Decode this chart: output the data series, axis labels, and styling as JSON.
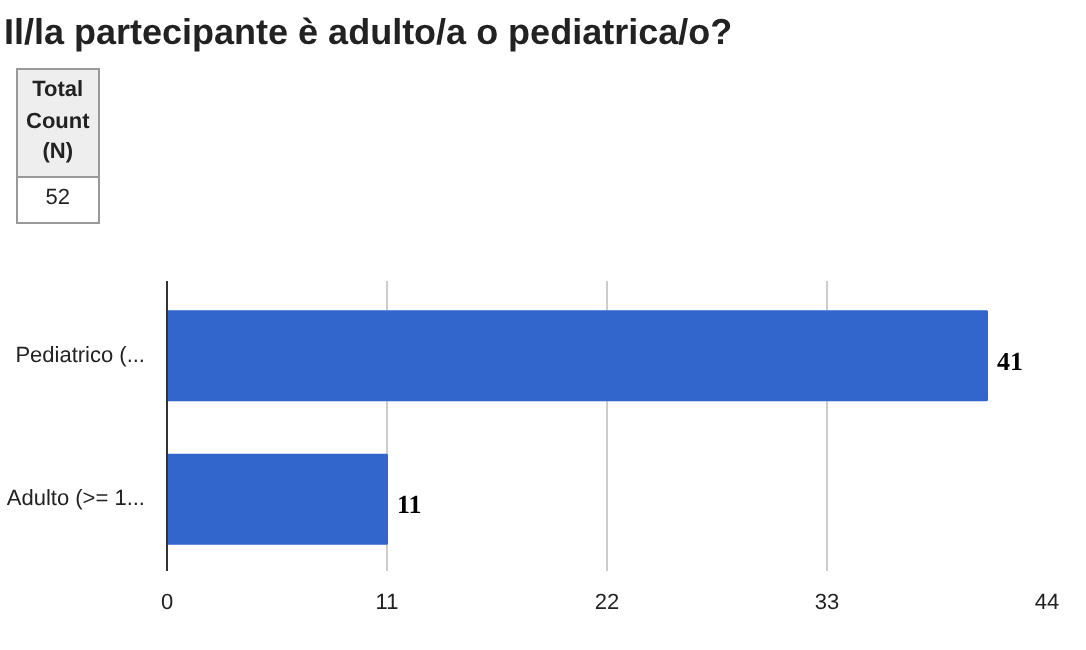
{
  "chart_data": {
    "type": "bar",
    "orientation": "horizontal",
    "title": "Il/la partecipante è adulto/a o pediatrica/o?",
    "categories": [
      "Pediatrico (...",
      "Adulto (>= 1..."
    ],
    "values": [
      41,
      11
    ],
    "color": "#3366cc",
    "xlim": [
      0,
      44
    ],
    "xticks": [
      0,
      11,
      22,
      33,
      44
    ],
    "grid": "x",
    "data_labels": true,
    "annotations": [
      "Total Count (N)",
      "52"
    ]
  }
}
